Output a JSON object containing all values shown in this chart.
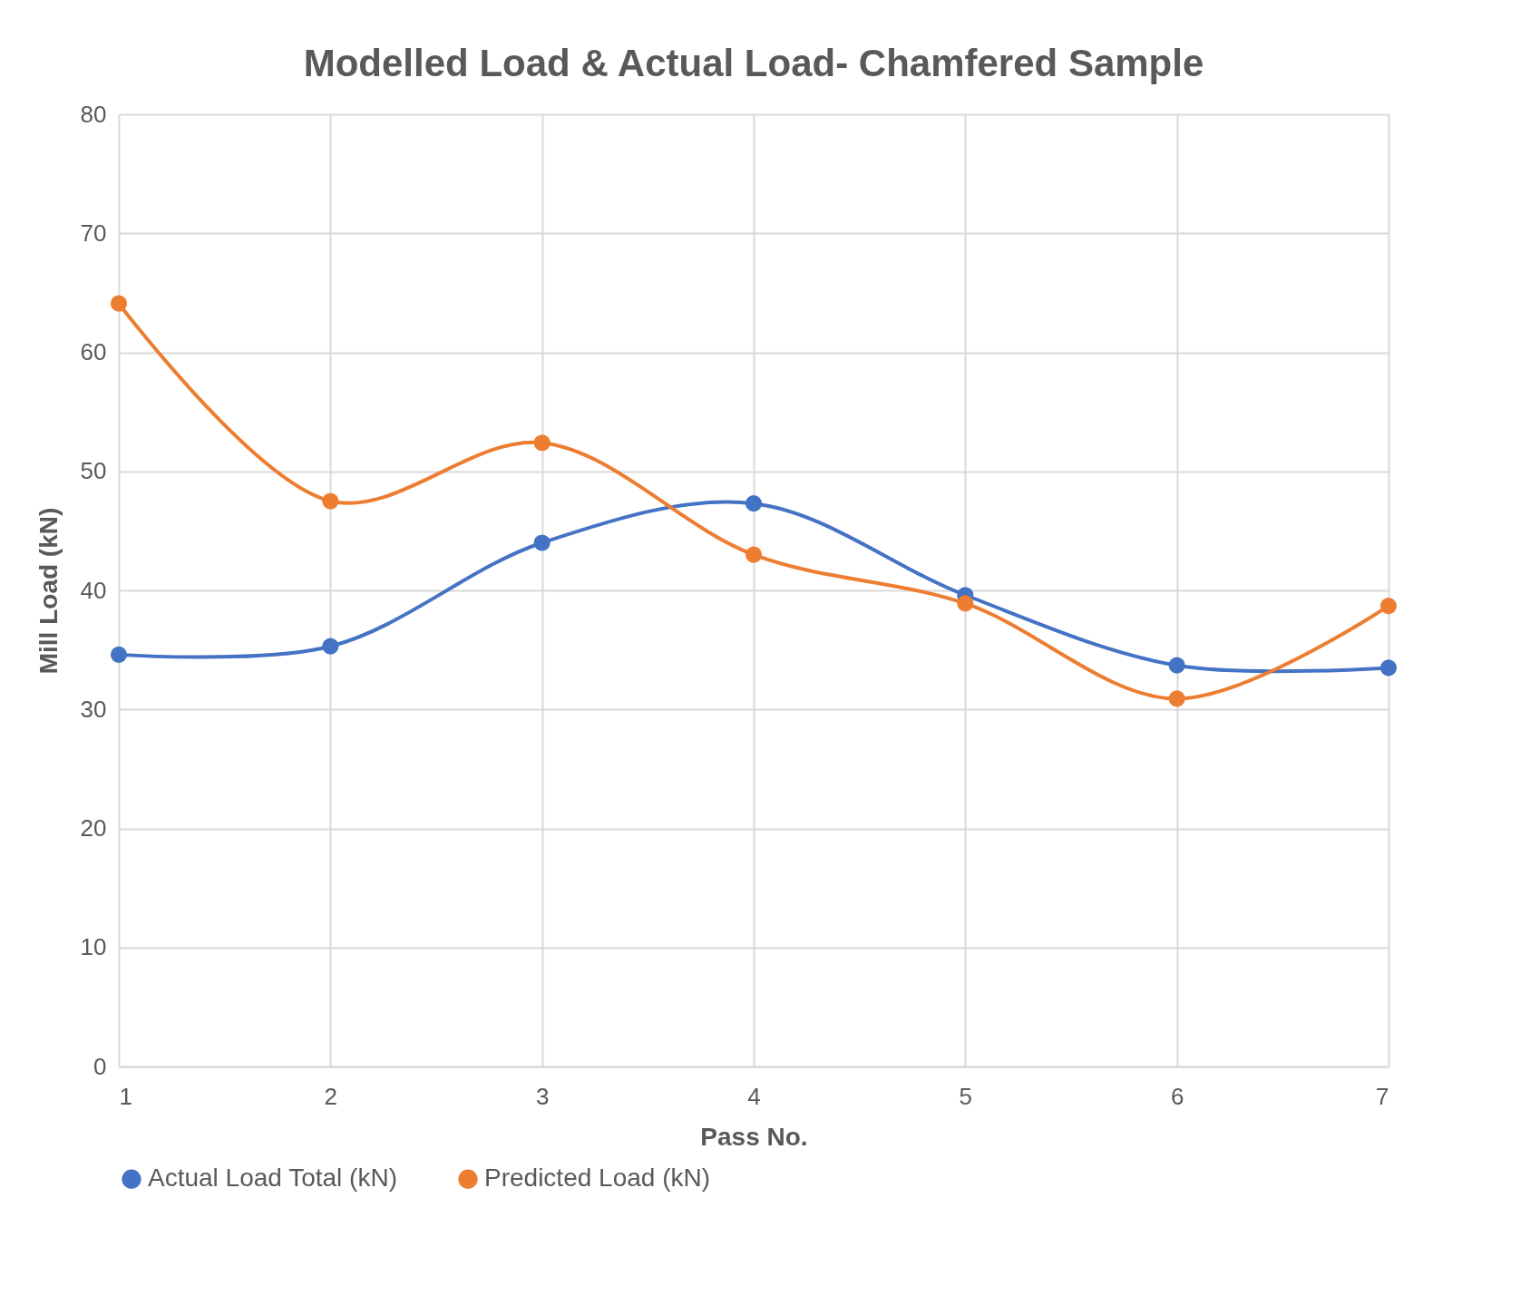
{
  "chart_data": {
    "type": "line",
    "title": "Modelled Load & Actual Load- Chamfered Sample",
    "xlabel": "Pass No.",
    "ylabel": "Mill Load (kN)",
    "x": [
      1,
      2,
      3,
      4,
      5,
      6,
      7
    ],
    "series": [
      {
        "name": "Actual Load Total (kN)",
        "color": "#4472c4",
        "values": [
          34.6,
          35.3,
          44.0,
          47.3,
          39.6,
          33.7,
          33.5
        ]
      },
      {
        "name": "Predicted Load (kN)",
        "color": "#ed7d31",
        "values": [
          64.1,
          47.5,
          52.4,
          43.0,
          38.9,
          30.9,
          38.7
        ]
      }
    ],
    "xlim": [
      1,
      7
    ],
    "xticks": [
      1,
      2,
      3,
      4,
      5,
      6,
      7
    ],
    "ylim": [
      0,
      80
    ],
    "yticks": [
      0,
      10,
      20,
      30,
      40,
      50,
      60,
      70,
      80
    ],
    "grid": true,
    "legend": "bottom",
    "marker": "circle",
    "line_style": "solid"
  }
}
